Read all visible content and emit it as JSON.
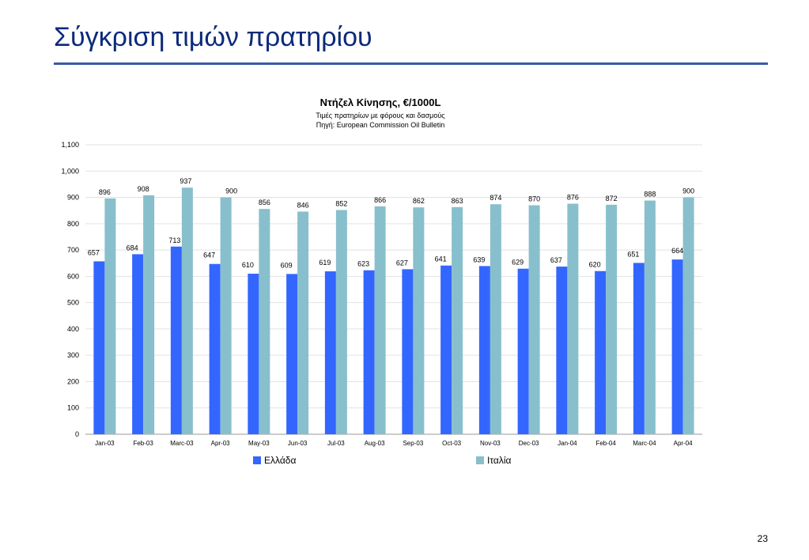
{
  "slide": {
    "title": "Σύγκριση τιμών πρατηρίου",
    "page_number": "23"
  },
  "colors": {
    "series_greece": "#3366ff",
    "series_italy": "#88bfcc",
    "title_text": "#0b2a7a",
    "title_rule": "#3a5aa8"
  },
  "chart_data": {
    "type": "bar",
    "title": "Ντήζελ Κίνησης, €/1000L",
    "subtitle": "Τιμές πρατηρίων με φόρους και δασμούς",
    "source": "Πηγή: European Commission Oil Bulletin",
    "xlabel": "",
    "ylabel": "",
    "ylim": [
      0,
      1100
    ],
    "yticks": [
      0,
      100,
      200,
      300,
      400,
      500,
      600,
      700,
      800,
      900,
      1000,
      1100
    ],
    "ytick_labels": [
      "0",
      "100",
      "200",
      "300",
      "400",
      "500",
      "600",
      "700",
      "800",
      "900",
      "1,000",
      "1,100"
    ],
    "grid": true,
    "legend_position": "bottom",
    "categories": [
      "Jan-03",
      "Feb-03",
      "Marc-03",
      "Apr-03",
      "May-03",
      "Jun-03",
      "Jul-03",
      "Aug-03",
      "Sep-03",
      "Oct-03",
      "Nov-03",
      "Dec-03",
      "Jan-04",
      "Feb-04",
      "Marc-04",
      "Apr-04"
    ],
    "series": [
      {
        "name": "Ελλάδα",
        "values": [
          657,
          684,
          713,
          647,
          610,
          609,
          619,
          623,
          627,
          641,
          639,
          629,
          637,
          620,
          651,
          664
        ]
      },
      {
        "name": "Ιταλία",
        "values": [
          896,
          908,
          937,
          900,
          856,
          846,
          852,
          866,
          862,
          863,
          874,
          870,
          876,
          872,
          888,
          900
        ]
      }
    ]
  }
}
